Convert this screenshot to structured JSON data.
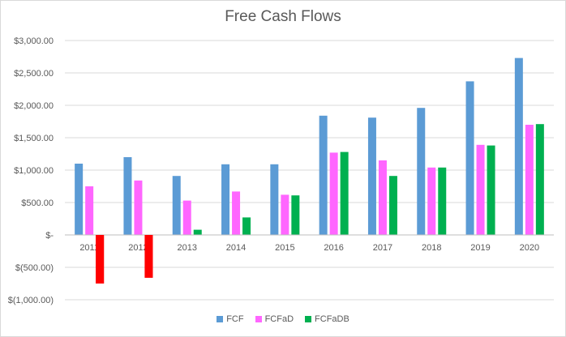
{
  "chart_data": {
    "type": "bar",
    "title": "Free Cash Flows",
    "xlabel": "",
    "ylabel": "",
    "categories": [
      "2011",
      "2012",
      "2013",
      "2014",
      "2015",
      "2016",
      "2017",
      "2018",
      "2019",
      "2020"
    ],
    "y_ticks": [
      "$3,000.00",
      "$2,500.00",
      "$2,000.00",
      "$1,500.00",
      "$1,000.00",
      "$500.00",
      "$-",
      "$(500.00)",
      "$(1,000.00)"
    ],
    "ylim": [
      -1000,
      3000
    ],
    "grid": true,
    "legend_position": "bottom",
    "negative_color": "#ff0000",
    "series": [
      {
        "name": "FCF",
        "color": "#5b9bd5",
        "values": [
          1100,
          1200,
          910,
          1090,
          1090,
          1840,
          1810,
          1960,
          2370,
          2730
        ]
      },
      {
        "name": "FCFaD",
        "color": "#ff66ff",
        "values": [
          750,
          840,
          530,
          670,
          620,
          1270,
          1150,
          1040,
          1390,
          1700
        ]
      },
      {
        "name": "FCFaDB",
        "color": "#00b050",
        "values": [
          -750,
          -660,
          80,
          270,
          610,
          1280,
          910,
          1040,
          1380,
          1710
        ]
      }
    ]
  }
}
